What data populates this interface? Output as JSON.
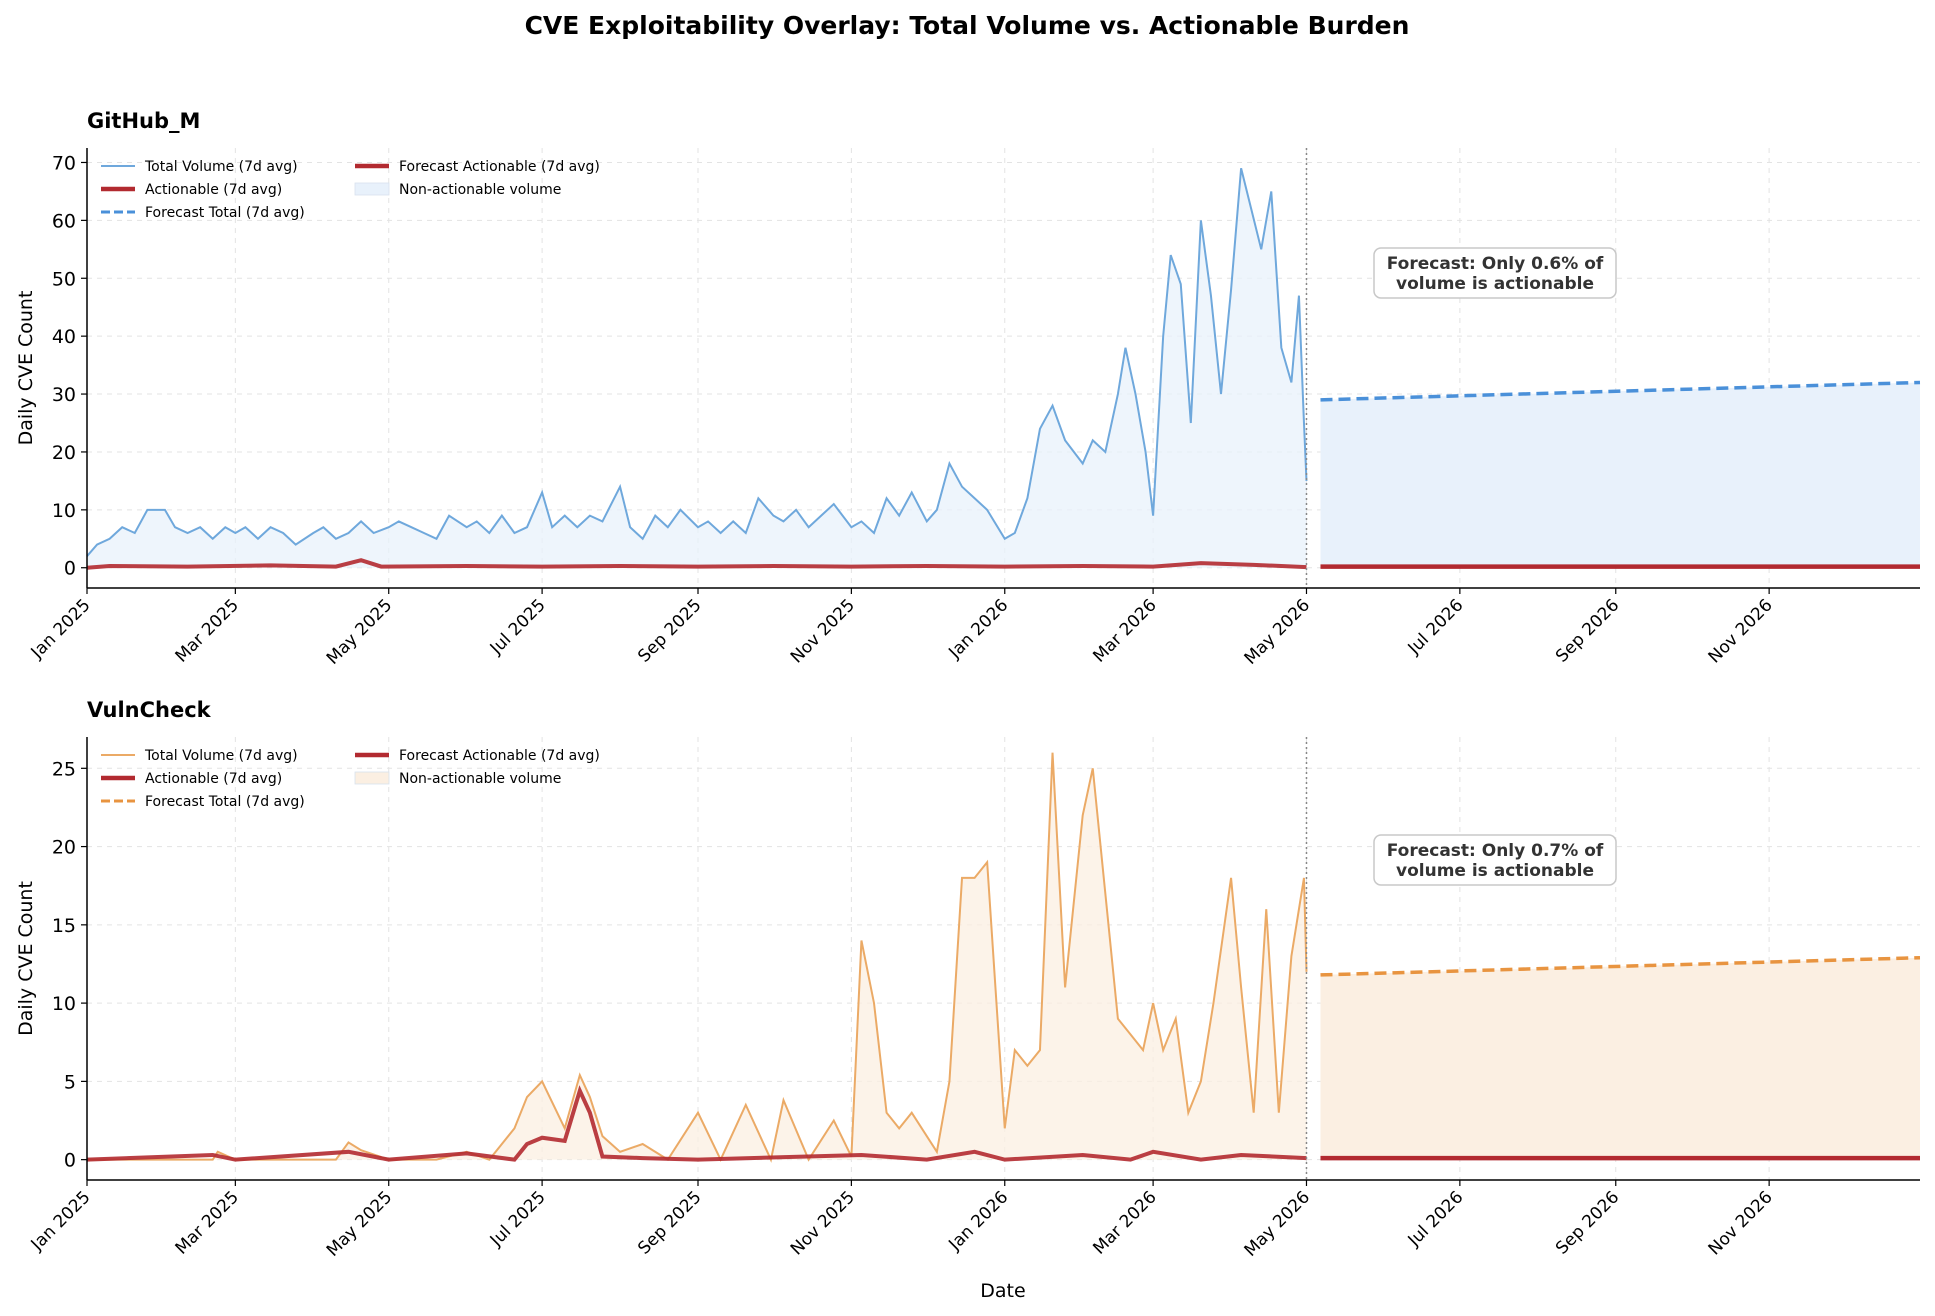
{
  "figure": {
    "title": "CVE Exploitability Overlay: Total Volume vs. Actionable Burden",
    "xlabel": "Date"
  },
  "colors": {
    "github_total": "#6fa8dc",
    "github_forecast": "#4a90d9",
    "github_fill": "#e8f1fb",
    "vulncheck_total": "#ebaa66",
    "vulncheck_forecast": "#e89440",
    "vulncheck_fill": "#fbefe2",
    "actionable": "#b22a30"
  },
  "chart_data": [
    {
      "type": "line",
      "title": "GitHub_M",
      "ylabel": "Daily CVE Count",
      "xlabel": "",
      "x_range": [
        "2025-01-01",
        "2026-12-31"
      ],
      "ylim": [
        -3.5,
        72.5
      ],
      "yticks": [
        0,
        10,
        20,
        30,
        40,
        50,
        60,
        70
      ],
      "xticks": [
        "Jan 2025",
        "Mar 2025",
        "May 2025",
        "Jul 2025",
        "Sep 2025",
        "Nov 2025",
        "Jan 2026",
        "Mar 2026",
        "May 2026",
        "Jul 2026",
        "Sep 2026",
        "Nov 2026"
      ],
      "grid": true,
      "legend_position": "top-left",
      "forecast_start": "2026-05-01",
      "legend": [
        "Total Volume (7d avg)",
        "Actionable (7d avg)",
        "Forecast Total (7d avg)",
        "Forecast Actionable (7d avg)",
        "Non-actionable volume"
      ],
      "annotation": "Forecast: Only 0.6% of\nvolume is actionable",
      "series": [
        {
          "name": "Total Volume (7d avg)",
          "points": [
            [
              "2025-01-01",
              2
            ],
            [
              "2025-01-05",
              4
            ],
            [
              "2025-01-10",
              5
            ],
            [
              "2025-01-15",
              7
            ],
            [
              "2025-01-20",
              6
            ],
            [
              "2025-01-25",
              10
            ],
            [
              "2025-02-01",
              10
            ],
            [
              "2025-02-05",
              7
            ],
            [
              "2025-02-10",
              6
            ],
            [
              "2025-02-15",
              7
            ],
            [
              "2025-02-20",
              5
            ],
            [
              "2025-02-25",
              7
            ],
            [
              "2025-03-01",
              6
            ],
            [
              "2025-03-05",
              7
            ],
            [
              "2025-03-10",
              5
            ],
            [
              "2025-03-15",
              7
            ],
            [
              "2025-03-20",
              6
            ],
            [
              "2025-03-25",
              4
            ],
            [
              "2025-04-01",
              6
            ],
            [
              "2025-04-05",
              7
            ],
            [
              "2025-04-10",
              5
            ],
            [
              "2025-04-15",
              6
            ],
            [
              "2025-04-20",
              8
            ],
            [
              "2025-04-25",
              6
            ],
            [
              "2025-05-01",
              7
            ],
            [
              "2025-05-05",
              8
            ],
            [
              "2025-05-10",
              7
            ],
            [
              "2025-05-15",
              6
            ],
            [
              "2025-05-20",
              5
            ],
            [
              "2025-05-25",
              9
            ],
            [
              "2025-06-01",
              7
            ],
            [
              "2025-06-05",
              8
            ],
            [
              "2025-06-10",
              6
            ],
            [
              "2025-06-15",
              9
            ],
            [
              "2025-06-20",
              6
            ],
            [
              "2025-06-25",
              7
            ],
            [
              "2025-07-01",
              13
            ],
            [
              "2025-07-05",
              7
            ],
            [
              "2025-07-10",
              9
            ],
            [
              "2025-07-15",
              7
            ],
            [
              "2025-07-20",
              9
            ],
            [
              "2025-07-25",
              8
            ],
            [
              "2025-08-01",
              14
            ],
            [
              "2025-08-05",
              7
            ],
            [
              "2025-08-10",
              5
            ],
            [
              "2025-08-15",
              9
            ],
            [
              "2025-08-20",
              7
            ],
            [
              "2025-08-25",
              10
            ],
            [
              "2025-09-01",
              7
            ],
            [
              "2025-09-05",
              8
            ],
            [
              "2025-09-10",
              6
            ],
            [
              "2025-09-15",
              8
            ],
            [
              "2025-09-20",
              6
            ],
            [
              "2025-09-25",
              12
            ],
            [
              "2025-10-01",
              9
            ],
            [
              "2025-10-05",
              8
            ],
            [
              "2025-10-10",
              10
            ],
            [
              "2025-10-15",
              7
            ],
            [
              "2025-10-20",
              9
            ],
            [
              "2025-10-25",
              11
            ],
            [
              "2025-11-01",
              7
            ],
            [
              "2025-11-05",
              8
            ],
            [
              "2025-11-10",
              6
            ],
            [
              "2025-11-15",
              12
            ],
            [
              "2025-11-20",
              9
            ],
            [
              "2025-11-25",
              13
            ],
            [
              "2025-12-01",
              8
            ],
            [
              "2025-12-05",
              10
            ],
            [
              "2025-12-10",
              18
            ],
            [
              "2025-12-15",
              14
            ],
            [
              "2025-12-20",
              12
            ],
            [
              "2025-12-25",
              10
            ],
            [
              "2026-01-01",
              5
            ],
            [
              "2026-01-05",
              6
            ],
            [
              "2026-01-10",
              12
            ],
            [
              "2026-01-15",
              24
            ],
            [
              "2026-01-20",
              28
            ],
            [
              "2026-01-25",
              22
            ],
            [
              "2026-02-01",
              18
            ],
            [
              "2026-02-05",
              22
            ],
            [
              "2026-02-10",
              20
            ],
            [
              "2026-02-15",
              30
            ],
            [
              "2026-02-18",
              38
            ],
            [
              "2026-02-22",
              30
            ],
            [
              "2026-02-26",
              20
            ],
            [
              "2026-03-01",
              9
            ],
            [
              "2026-03-05",
              40
            ],
            [
              "2026-03-08",
              54
            ],
            [
              "2026-03-12",
              49
            ],
            [
              "2026-03-16",
              25
            ],
            [
              "2026-03-20",
              60
            ],
            [
              "2026-03-24",
              47
            ],
            [
              "2026-03-28",
              30
            ],
            [
              "2026-04-01",
              48
            ],
            [
              "2026-04-05",
              69
            ],
            [
              "2026-04-09",
              62
            ],
            [
              "2026-04-13",
              55
            ],
            [
              "2026-04-17",
              65
            ],
            [
              "2026-04-21",
              38
            ],
            [
              "2026-04-25",
              32
            ],
            [
              "2026-04-28",
              47
            ],
            [
              "2026-04-30",
              25
            ],
            [
              "2026-05-01",
              15
            ]
          ]
        },
        {
          "name": "Actionable (7d avg)",
          "points": [
            [
              "2025-01-01",
              0
            ],
            [
              "2025-01-10",
              0.3
            ],
            [
              "2025-02-10",
              0.2
            ],
            [
              "2025-03-15",
              0.4
            ],
            [
              "2025-04-10",
              0.2
            ],
            [
              "2025-04-20",
              1.3
            ],
            [
              "2025-04-28",
              0.2
            ],
            [
              "2025-06-01",
              0.3
            ],
            [
              "2025-07-01",
              0.2
            ],
            [
              "2025-08-01",
              0.3
            ],
            [
              "2025-09-01",
              0.2
            ],
            [
              "2025-10-01",
              0.3
            ],
            [
              "2025-11-01",
              0.2
            ],
            [
              "2025-12-01",
              0.3
            ],
            [
              "2026-01-01",
              0.2
            ],
            [
              "2026-02-01",
              0.3
            ],
            [
              "2026-03-01",
              0.2
            ],
            [
              "2026-03-20",
              0.8
            ],
            [
              "2026-04-10",
              0.5
            ],
            [
              "2026-05-01",
              0.1
            ]
          ]
        },
        {
          "name": "Forecast Total (7d avg)",
          "points": [
            [
              "2026-05-01",
              29
            ],
            [
              "2026-12-31",
              32
            ]
          ]
        },
        {
          "name": "Forecast Actionable (7d avg)",
          "points": [
            [
              "2026-05-01",
              0.2
            ],
            [
              "2026-12-31",
              0.2
            ]
          ]
        }
      ]
    },
    {
      "type": "line",
      "title": "VulnCheck",
      "ylabel": "Daily CVE Count",
      "xlabel": "Date",
      "x_range": [
        "2025-01-01",
        "2026-12-31"
      ],
      "ylim": [
        -1.3,
        27
      ],
      "yticks": [
        0,
        5,
        10,
        15,
        20,
        25
      ],
      "xticks": [
        "Jan 2025",
        "Mar 2025",
        "May 2025",
        "Jul 2025",
        "Sep 2025",
        "Nov 2025",
        "Jan 2026",
        "Mar 2026",
        "May 2026",
        "Jul 2026",
        "Sep 2026",
        "Nov 2026"
      ],
      "grid": true,
      "legend_position": "top-left",
      "forecast_start": "2026-05-01",
      "legend": [
        "Total Volume (7d avg)",
        "Actionable (7d avg)",
        "Forecast Total (7d avg)",
        "Forecast Actionable (7d avg)",
        "Non-actionable volume"
      ],
      "annotation": "Forecast: Only 0.7% of\nvolume is actionable",
      "series": [
        {
          "name": "Total Volume (7d avg)",
          "points": [
            [
              "2025-01-01",
              0
            ],
            [
              "2025-02-20",
              0
            ],
            [
              "2025-02-22",
              0.5
            ],
            [
              "2025-03-01",
              0
            ],
            [
              "2025-04-10",
              0
            ],
            [
              "2025-04-15",
              1.1
            ],
            [
              "2025-04-20",
              0.6
            ],
            [
              "2025-05-01",
              0
            ],
            [
              "2025-05-20",
              0
            ],
            [
              "2025-06-01",
              0.5
            ],
            [
              "2025-06-10",
              0
            ],
            [
              "2025-06-20",
              2
            ],
            [
              "2025-06-25",
              4
            ],
            [
              "2025-07-01",
              5
            ],
            [
              "2025-07-10",
              2
            ],
            [
              "2025-07-16",
              5.4
            ],
            [
              "2025-07-20",
              4
            ],
            [
              "2025-07-25",
              1.5
            ],
            [
              "2025-08-01",
              0.5
            ],
            [
              "2025-08-10",
              1
            ],
            [
              "2025-08-20",
              0
            ],
            [
              "2025-09-01",
              3
            ],
            [
              "2025-09-10",
              0
            ],
            [
              "2025-09-20",
              3.5
            ],
            [
              "2025-09-30",
              0
            ],
            [
              "2025-10-05",
              3.8
            ],
            [
              "2025-10-15",
              0
            ],
            [
              "2025-10-25",
              2.5
            ],
            [
              "2025-11-01",
              0.2
            ],
            [
              "2025-11-05",
              14
            ],
            [
              "2025-11-10",
              10
            ],
            [
              "2025-11-15",
              3
            ],
            [
              "2025-11-20",
              2
            ],
            [
              "2025-11-25",
              3
            ],
            [
              "2025-12-01",
              1.5
            ],
            [
              "2025-12-05",
              0.5
            ],
            [
              "2025-12-10",
              5
            ],
            [
              "2025-12-15",
              18
            ],
            [
              "2025-12-20",
              18
            ],
            [
              "2025-12-25",
              19
            ],
            [
              "2026-01-01",
              2
            ],
            [
              "2026-01-05",
              7
            ],
            [
              "2026-01-10",
              6
            ],
            [
              "2026-01-15",
              7
            ],
            [
              "2026-01-20",
              26
            ],
            [
              "2026-01-25",
              11
            ],
            [
              "2026-02-01",
              22
            ],
            [
              "2026-02-05",
              25
            ],
            [
              "2026-02-10",
              17
            ],
            [
              "2026-02-15",
              9
            ],
            [
              "2026-02-20",
              8
            ],
            [
              "2026-02-25",
              7
            ],
            [
              "2026-03-01",
              10
            ],
            [
              "2026-03-05",
              7
            ],
            [
              "2026-03-10",
              9
            ],
            [
              "2026-03-15",
              3
            ],
            [
              "2026-03-20",
              5
            ],
            [
              "2026-03-25",
              10
            ],
            [
              "2026-04-01",
              18
            ],
            [
              "2026-04-05",
              11
            ],
            [
              "2026-04-10",
              3
            ],
            [
              "2026-04-15",
              16
            ],
            [
              "2026-04-20",
              3
            ],
            [
              "2026-04-25",
              13
            ],
            [
              "2026-04-30",
              18
            ],
            [
              "2026-05-01",
              12
            ]
          ]
        },
        {
          "name": "Actionable (7d avg)",
          "points": [
            [
              "2025-01-01",
              0
            ],
            [
              "2025-02-20",
              0.3
            ],
            [
              "2025-03-01",
              0
            ],
            [
              "2025-04-15",
              0.5
            ],
            [
              "2025-05-01",
              0
            ],
            [
              "2025-06-01",
              0.4
            ],
            [
              "2025-06-20",
              0
            ],
            [
              "2025-06-25",
              1
            ],
            [
              "2025-07-01",
              1.4
            ],
            [
              "2025-07-10",
              1.2
            ],
            [
              "2025-07-16",
              4.4
            ],
            [
              "2025-07-20",
              3
            ],
            [
              "2025-07-25",
              0.2
            ],
            [
              "2025-08-10",
              0.1
            ],
            [
              "2025-09-01",
              0
            ],
            [
              "2025-11-05",
              0.3
            ],
            [
              "2025-12-01",
              0
            ],
            [
              "2025-12-20",
              0.5
            ],
            [
              "2026-01-01",
              0
            ],
            [
              "2026-02-01",
              0.3
            ],
            [
              "2026-02-20",
              0
            ],
            [
              "2026-03-01",
              0.5
            ],
            [
              "2026-03-20",
              0
            ],
            [
              "2026-04-05",
              0.3
            ],
            [
              "2026-05-01",
              0.1
            ]
          ]
        },
        {
          "name": "Forecast Total (7d avg)",
          "points": [
            [
              "2026-05-01",
              11.8
            ],
            [
              "2026-12-31",
              12.9
            ]
          ]
        },
        {
          "name": "Forecast Actionable (7d avg)",
          "points": [
            [
              "2026-05-01",
              0.1
            ],
            [
              "2026-12-31",
              0.1
            ]
          ]
        }
      ]
    }
  ]
}
